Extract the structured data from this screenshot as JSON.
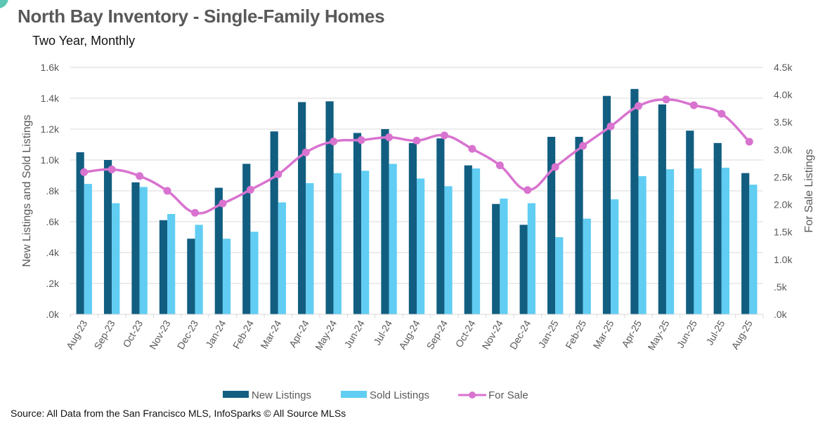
{
  "header": {
    "title": "North Bay Inventory - Single-Family Homes",
    "subtitle": "Two Year, Monthly"
  },
  "footer": {
    "source": "Source: All Data from the San Francisco MLS, InfoSparks © All Source MLSs"
  },
  "colors": {
    "new_listings": "#115e81",
    "sold_listings": "#61cdf3",
    "for_sale": "#d873cf",
    "grid": "#d9d9d9",
    "corner_accent": "#5cc8b4"
  },
  "chart_data": {
    "type": "bar",
    "title": "North Bay Inventory - Single-Family Homes",
    "subtitle": "Two Year, Monthly",
    "categories": [
      "Aug-23",
      "Sep-23",
      "Oct-23",
      "Nov-23",
      "Dec-23",
      "Jan-24",
      "Feb-24",
      "Mar-24",
      "Apr-24",
      "May-24",
      "Jun-24",
      "Jul-24",
      "Aug-24",
      "Sep-24",
      "Oct-24",
      "Nov-24",
      "Dec-24",
      "Jan-25",
      "Feb-25",
      "Mar-25",
      "Apr-25",
      "May-25",
      "Jun-25",
      "Jul-25",
      "Aug-25"
    ],
    "series": [
      {
        "name": "New Listings",
        "type": "bar",
        "axis": "left",
        "values": [
          1050,
          1000,
          855,
          610,
          490,
          820,
          975,
          1185,
          1375,
          1380,
          1175,
          1200,
          1110,
          1140,
          965,
          715,
          580,
          1150,
          1150,
          1415,
          1460,
          1360,
          1190,
          1110,
          915
        ]
      },
      {
        "name": "Sold Listings",
        "type": "bar",
        "axis": "left",
        "values": [
          845,
          720,
          825,
          650,
          580,
          490,
          535,
          725,
          850,
          915,
          930,
          975,
          880,
          830,
          945,
          750,
          720,
          500,
          620,
          745,
          895,
          940,
          945,
          950,
          840
        ]
      },
      {
        "name": "For Sale",
        "type": "line",
        "axis": "right",
        "values": [
          2590,
          2640,
          2520,
          2250,
          1850,
          2020,
          2270,
          2550,
          2950,
          3150,
          3175,
          3225,
          3165,
          3260,
          3015,
          2715,
          2265,
          2685,
          3070,
          3425,
          3795,
          3915,
          3810,
          3655,
          3145
        ]
      }
    ],
    "ylabel": "New Listings and Sold Listings",
    "ylabel_right": "For Sale Listings",
    "xlabel": "",
    "ylim": [
      0,
      1600
    ],
    "ylim_right": [
      0,
      4500
    ],
    "yticks": [
      0,
      200,
      400,
      600,
      800,
      1000,
      1200,
      1400,
      1600
    ],
    "ytick_labels": [
      ".0k",
      ".2k",
      ".4k",
      ".6k",
      ".8k",
      "1.0k",
      "1.2k",
      "1.4k",
      "1.6k"
    ],
    "yticks_right": [
      0,
      500,
      1000,
      1500,
      2000,
      2500,
      3000,
      3500,
      4000,
      4500
    ],
    "ytick_labels_right": [
      ".0k",
      ".5k",
      "1.0k",
      "1.5k",
      "2.0k",
      "2.5k",
      "3.0k",
      "3.5k",
      "4.0k",
      "4.5k"
    ],
    "grid": true,
    "legend": {
      "position": "bottom",
      "entries": [
        "New Listings",
        "Sold Listings",
        "For Sale"
      ]
    }
  }
}
